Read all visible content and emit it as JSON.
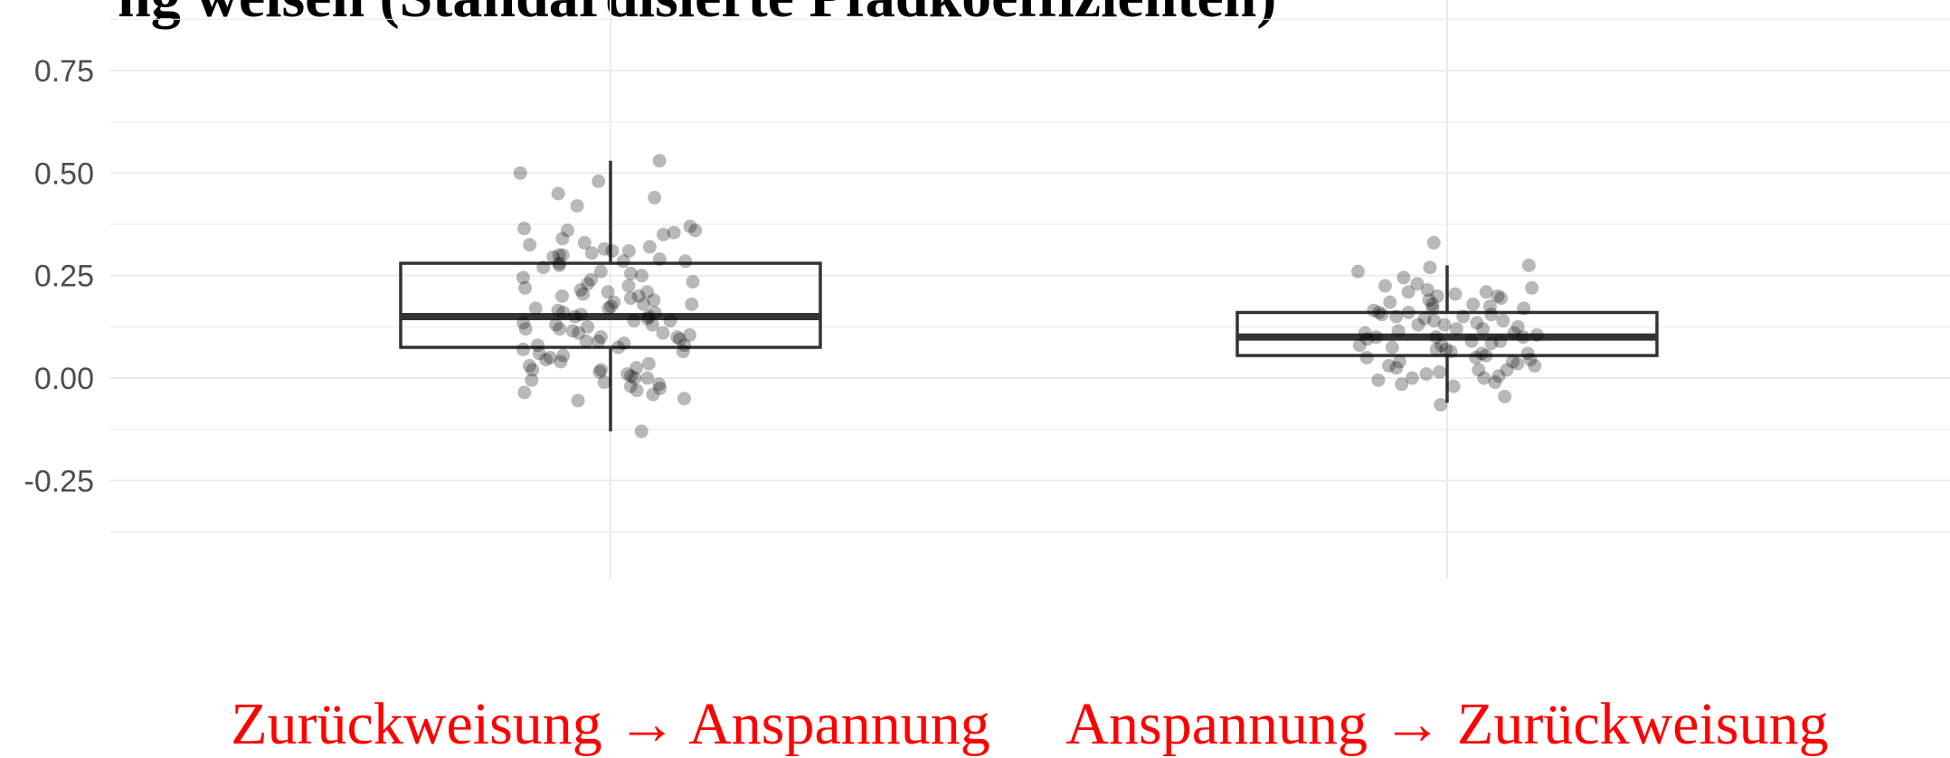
{
  "chart_data": {
    "type": "boxplot",
    "title": "ng weisen (Standardisierte Pfadkoeffizienten)",
    "xlabel": "",
    "ylabel": "",
    "ylim": [
      -0.3,
      0.92
    ],
    "grid": true,
    "y_ticks": [
      {
        "value": 0.75,
        "label": "0.75"
      },
      {
        "value": 0.5,
        "label": "0.50"
      },
      {
        "value": 0.25,
        "label": "0.25"
      },
      {
        "value": 0.0,
        "label": "0.00"
      },
      {
        "value": -0.25,
        "label": "-0.25"
      }
    ],
    "category_label_color": "#ff0000",
    "categories": [
      "Zurückweisung → Anspannung",
      "Anspannung → Zurückweisung"
    ],
    "boxes": [
      {
        "category": "Zurückweisung → Anspannung",
        "whisker_low": -0.13,
        "q1": 0.075,
        "median": 0.15,
        "q3": 0.28,
        "whisker_high": 0.53
      },
      {
        "category": "Anspannung → Zurückweisung",
        "whisker_low": -0.06,
        "q1": 0.055,
        "median": 0.1,
        "q3": 0.16,
        "whisker_high": 0.275
      }
    ],
    "points": [
      {
        "group": 0,
        "values": [
          0.5,
          0.53,
          0.48,
          0.45,
          0.44,
          0.42,
          0.37,
          0.36,
          0.36,
          0.365,
          0.355,
          0.35,
          0.34,
          0.33,
          0.325,
          0.32,
          0.315,
          0.31,
          0.31,
          0.305,
          0.3,
          0.3,
          0.295,
          0.29,
          0.285,
          0.285,
          0.28,
          0.275,
          0.27,
          0.26,
          0.255,
          0.25,
          0.245,
          0.24,
          0.235,
          0.23,
          0.225,
          0.22,
          0.215,
          0.21,
          0.21,
          0.205,
          0.2,
          0.2,
          0.195,
          0.19,
          0.185,
          0.18,
          0.18,
          0.175,
          0.17,
          0.17,
          0.165,
          0.16,
          0.16,
          0.155,
          0.15,
          0.15,
          0.145,
          0.14,
          0.14,
          0.135,
          0.13,
          0.13,
          0.125,
          0.12,
          0.12,
          0.115,
          0.11,
          0.11,
          0.105,
          0.1,
          0.1,
          0.095,
          0.09,
          0.09,
          0.085,
          0.08,
          0.08,
          0.075,
          0.07,
          0.065,
          0.06,
          0.055,
          0.05,
          0.045,
          0.04,
          0.035,
          0.03,
          0.025,
          0.02,
          0.02,
          0.015,
          0.01,
          0.005,
          0.0,
          0.0,
          -0.005,
          -0.01,
          -0.015,
          -0.02,
          -0.025,
          -0.03,
          -0.035,
          -0.04,
          -0.05,
          -0.055,
          -0.13
        ]
      },
      {
        "group": 1,
        "values": [
          0.33,
          0.275,
          0.27,
          0.26,
          0.245,
          0.23,
          0.225,
          0.22,
          0.215,
          0.21,
          0.21,
          0.205,
          0.2,
          0.2,
          0.195,
          0.19,
          0.185,
          0.18,
          0.18,
          0.175,
          0.17,
          0.17,
          0.165,
          0.16,
          0.16,
          0.155,
          0.155,
          0.15,
          0.15,
          0.145,
          0.14,
          0.14,
          0.135,
          0.13,
          0.13,
          0.125,
          0.12,
          0.12,
          0.115,
          0.11,
          0.11,
          0.105,
          0.1,
          0.1,
          0.1,
          0.095,
          0.09,
          0.09,
          0.085,
          0.08,
          0.08,
          0.075,
          0.07,
          0.07,
          0.065,
          0.06,
          0.06,
          0.055,
          0.05,
          0.05,
          0.045,
          0.04,
          0.04,
          0.035,
          0.03,
          0.03,
          0.025,
          0.02,
          0.02,
          0.015,
          0.01,
          0.005,
          0.0,
          0.0,
          -0.005,
          -0.01,
          -0.015,
          -0.02,
          -0.045,
          -0.065
        ]
      }
    ]
  },
  "colors": {
    "grid": "#ebebeb",
    "box_stroke": "#333333",
    "point_fill": "#000000",
    "category_label": "#ff0000"
  }
}
